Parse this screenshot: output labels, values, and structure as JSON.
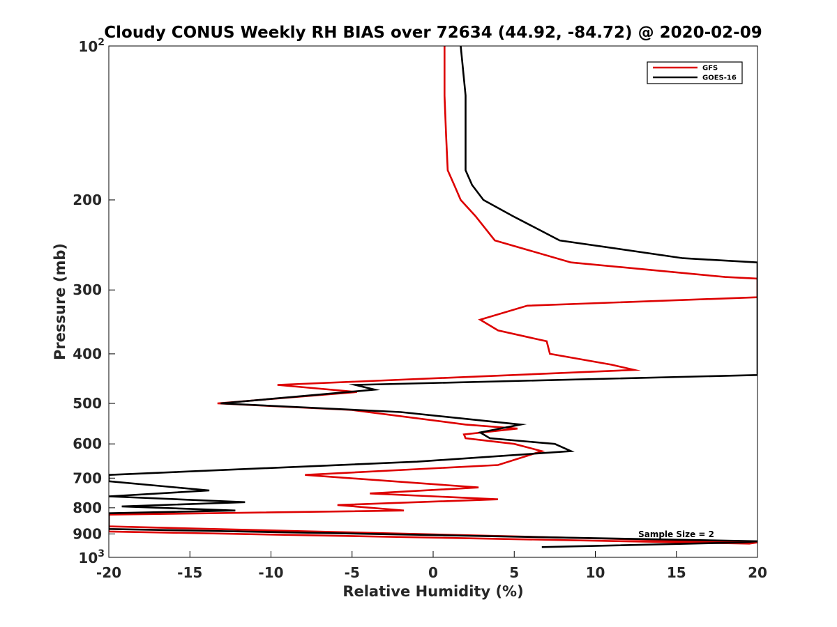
{
  "chart_data": {
    "type": "line",
    "title": "Cloudy CONUS Weekly RH BIAS over 72634 (44.92, -84.72) @ 2020-02-09",
    "xlabel": "Relative Humidity (%)",
    "ylabel": "Pressure (mb)",
    "xlim": [
      -20,
      20
    ],
    "ylim": [
      100,
      1000
    ],
    "y_scale": "log",
    "y_reversed": true,
    "grid": false,
    "legend_position": "top-right",
    "xticks": [
      -20,
      -15,
      -10,
      -5,
      0,
      5,
      10,
      15,
      20
    ],
    "xtick_labels": [
      "-20",
      "-15",
      "-10",
      "-5",
      "0",
      "5",
      "10",
      "15",
      "20"
    ],
    "yticks": [
      100,
      200,
      300,
      400,
      500,
      600,
      700,
      800,
      900,
      1000
    ],
    "ytick_labels": [
      {
        "base": "10",
        "exp": "2"
      },
      {
        "base": "200",
        "exp": ""
      },
      {
        "base": "300",
        "exp": ""
      },
      {
        "base": "400",
        "exp": ""
      },
      {
        "base": "500",
        "exp": ""
      },
      {
        "base": "600",
        "exp": ""
      },
      {
        "base": "700",
        "exp": ""
      },
      {
        "base": "800",
        "exp": ""
      },
      {
        "base": "900",
        "exp": ""
      },
      {
        "base": "10",
        "exp": "3"
      }
    ],
    "annotation": "Sample Size = 2",
    "series": [
      {
        "name": "GFS",
        "color": "#dd0000",
        "points": [
          [
            0.7,
            100
          ],
          [
            0.7,
            125
          ],
          [
            0.8,
            150
          ],
          [
            0.9,
            175
          ],
          [
            1.3,
            187
          ],
          [
            1.7,
            200
          ],
          [
            2.6,
            215
          ],
          [
            3.8,
            240
          ],
          [
            8.5,
            265
          ],
          [
            18.0,
            283
          ],
          [
            20,
            285
          ],
          [
            20,
            310
          ],
          [
            5.8,
            322
          ],
          [
            2.9,
            343
          ],
          [
            4.0,
            360
          ],
          [
            7.0,
            378
          ],
          [
            7.2,
            400
          ],
          [
            11.0,
            420
          ],
          [
            12.4,
            430
          ],
          [
            -9.6,
            460
          ],
          [
            -4.7,
            475
          ],
          [
            -13.3,
            500
          ],
          [
            -5.0,
            515
          ],
          [
            2.0,
            550
          ],
          [
            5.2,
            560
          ],
          [
            1.9,
            575
          ],
          [
            2.0,
            585
          ],
          [
            5.0,
            600
          ],
          [
            6.7,
            620
          ],
          [
            4.0,
            660
          ],
          [
            -7.9,
            690
          ],
          [
            2.8,
            730
          ],
          [
            -3.9,
            750
          ],
          [
            4.0,
            770
          ],
          [
            -5.9,
            790
          ],
          [
            -1.8,
            810
          ],
          [
            -20,
            825
          ],
          [
            -20,
            870
          ],
          [
            20,
            935
          ],
          [
            19.5,
            940
          ],
          [
            -20,
            890
          ],
          [
            -20,
            880
          ]
        ]
      },
      {
        "name": "GOES-16",
        "color": "#000000",
        "points": [
          [
            1.7,
            100
          ],
          [
            2.0,
            125
          ],
          [
            2.0,
            150
          ],
          [
            2.0,
            175
          ],
          [
            2.4,
            187
          ],
          [
            3.1,
            200
          ],
          [
            4.9,
            215
          ],
          [
            7.8,
            240
          ],
          [
            15.4,
            260
          ],
          [
            20,
            265
          ],
          [
            20,
            440
          ],
          [
            -4.8,
            460
          ],
          [
            -3.6,
            470
          ],
          [
            -13.1,
            500
          ],
          [
            -2.0,
            520
          ],
          [
            5.4,
            550
          ],
          [
            2.9,
            570
          ],
          [
            3.5,
            585
          ],
          [
            7.5,
            600
          ],
          [
            8.5,
            620
          ],
          [
            -1.0,
            650
          ],
          [
            -20,
            690
          ],
          [
            -20,
            710
          ],
          [
            -13.8,
            740
          ],
          [
            -20,
            760
          ],
          [
            -11.6,
            780
          ],
          [
            -19.2,
            795
          ],
          [
            -12.2,
            810
          ],
          [
            -20,
            820
          ],
          [
            -20,
            880
          ],
          [
            20,
            930
          ],
          [
            19.0,
            935
          ],
          [
            6.7,
            955
          ]
        ]
      }
    ]
  }
}
